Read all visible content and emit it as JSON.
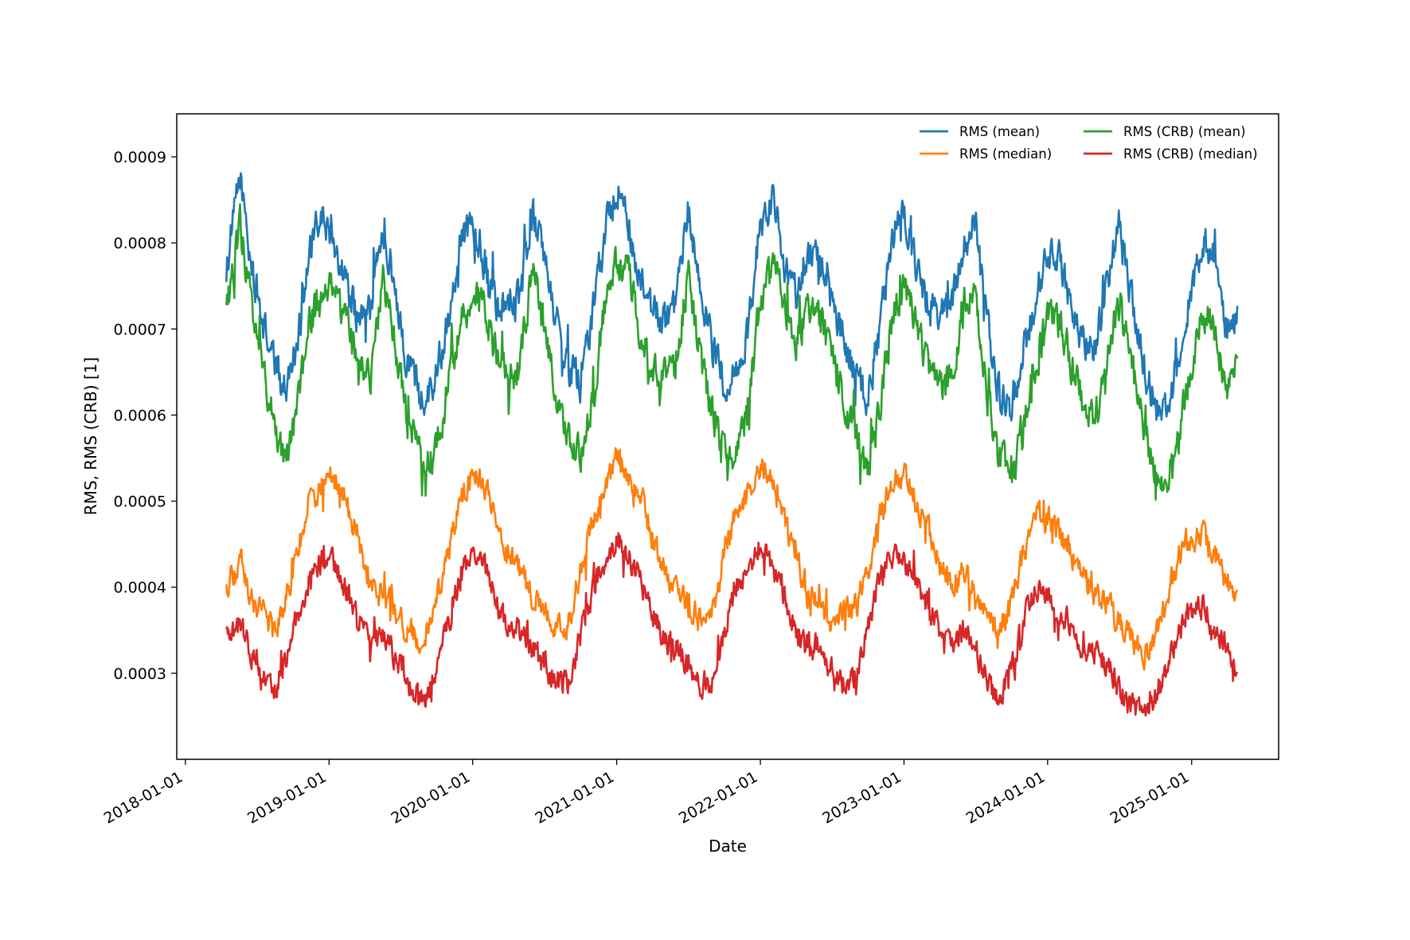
{
  "chart_data": {
    "type": "line",
    "title": "",
    "xlabel": "Date",
    "ylabel": "RMS, RMS (CRB) [1]",
    "x_range": [
      "2018-04-15",
      "2025-04-27"
    ],
    "xlim": [
      "2017-12-10",
      "2025-08-10"
    ],
    "ylim": [
      0.0002,
      0.00095
    ],
    "x_ticks": [
      "2018-01-01",
      "2019-01-01",
      "2020-01-01",
      "2021-01-01",
      "2022-01-01",
      "2023-01-01",
      "2024-01-01",
      "2025-01-01"
    ],
    "y_ticks": [
      0.0003,
      0.0004,
      0.0005,
      0.0006,
      0.0007,
      0.0008,
      0.0009
    ],
    "y_tick_labels": [
      "0.0003",
      "0.0004",
      "0.0005",
      "0.0006",
      "0.0007",
      "0.0008",
      "0.0009"
    ],
    "grid": false,
    "legend_position": "top-right",
    "series": [
      {
        "name": "RMS (mean)",
        "color": "#1f77b4",
        "x": [
          "2018-04-15",
          "2018-05-20",
          "2018-06-15",
          "2018-07-15",
          "2018-08-15",
          "2018-09-10",
          "2018-10-10",
          "2018-11-10",
          "2018-12-10",
          "2019-01-10",
          "2019-02-10",
          "2019-03-15",
          "2019-04-15",
          "2019-05-20",
          "2019-06-20",
          "2019-07-20",
          "2019-08-25",
          "2019-09-25",
          "2019-10-25",
          "2019-12-01",
          "2020-01-01",
          "2020-02-01",
          "2020-03-01",
          "2020-04-01",
          "2020-05-01",
          "2020-06-01",
          "2020-07-01",
          "2020-08-01",
          "2020-09-01",
          "2020-10-01",
          "2020-11-01",
          "2020-12-01",
          "2021-01-01",
          "2021-02-01",
          "2021-03-01",
          "2021-04-01",
          "2021-05-01",
          "2021-06-01",
          "2021-07-01",
          "2021-08-01",
          "2021-09-01",
          "2021-10-01",
          "2021-11-01",
          "2021-12-01",
          "2022-01-01",
          "2022-02-01",
          "2022-03-01",
          "2022-04-01",
          "2022-05-01",
          "2022-06-01",
          "2022-07-01",
          "2022-08-01",
          "2022-09-01",
          "2022-10-01",
          "2022-11-01",
          "2022-12-01",
          "2023-01-01",
          "2023-02-01",
          "2023-03-01",
          "2023-04-01",
          "2023-05-01",
          "2023-06-01",
          "2023-07-01",
          "2023-08-01",
          "2023-09-01",
          "2023-10-01",
          "2023-11-01",
          "2023-12-01",
          "2024-01-01",
          "2024-02-01",
          "2024-03-01",
          "2024-04-01",
          "2024-05-01",
          "2024-06-01",
          "2024-07-01",
          "2024-08-01",
          "2024-09-01",
          "2024-10-01",
          "2024-11-01",
          "2024-12-01",
          "2025-01-01",
          "2025-02-01",
          "2025-03-01",
          "2025-04-01",
          "2025-04-27"
        ],
        "values": [
          0.00077,
          0.00088,
          0.00078,
          0.00071,
          0.00066,
          0.00063,
          0.00068,
          0.00078,
          0.00083,
          0.00081,
          0.00076,
          0.00071,
          0.00072,
          0.00082,
          0.00074,
          0.00066,
          0.00062,
          0.00064,
          0.0007,
          0.0008,
          0.00083,
          0.00078,
          0.00073,
          0.00072,
          0.00074,
          0.00084,
          0.00078,
          0.00071,
          0.00065,
          0.00064,
          0.00072,
          0.00081,
          0.00087,
          0.00082,
          0.00075,
          0.00072,
          0.00071,
          0.00072,
          0.00084,
          0.00075,
          0.00068,
          0.00064,
          0.00064,
          0.0007,
          0.00082,
          0.00085,
          0.00078,
          0.00074,
          0.00079,
          0.00078,
          0.00073,
          0.00069,
          0.00064,
          0.00062,
          0.0007,
          0.0008,
          0.00084,
          0.00077,
          0.00073,
          0.00072,
          0.00072,
          0.0008,
          0.00082,
          0.0007,
          0.00062,
          0.00061,
          0.00067,
          0.00074,
          0.00079,
          0.00078,
          0.00072,
          0.00068,
          0.00068,
          0.00075,
          0.00082,
          0.00074,
          0.00066,
          0.00061,
          0.00061,
          0.00067,
          0.00075,
          0.0008,
          0.00078,
          0.0007,
          0.00072
        ]
      },
      {
        "name": "RMS (median)",
        "color": "#ff7f0e",
        "x": [
          "2018-04-15",
          "2018-05-20",
          "2018-06-15",
          "2018-07-15",
          "2018-08-15",
          "2018-09-10",
          "2018-10-10",
          "2018-11-10",
          "2018-12-10",
          "2019-01-10",
          "2019-02-10",
          "2019-03-15",
          "2019-04-15",
          "2019-05-20",
          "2019-06-20",
          "2019-07-20",
          "2019-08-25",
          "2019-09-25",
          "2019-10-25",
          "2019-12-01",
          "2020-01-01",
          "2020-02-01",
          "2020-03-01",
          "2020-04-01",
          "2020-05-01",
          "2020-06-01",
          "2020-07-01",
          "2020-08-01",
          "2020-09-01",
          "2020-10-01",
          "2020-11-01",
          "2020-12-01",
          "2021-01-01",
          "2021-02-01",
          "2021-03-01",
          "2021-04-01",
          "2021-05-01",
          "2021-06-01",
          "2021-07-01",
          "2021-08-01",
          "2021-09-01",
          "2021-10-01",
          "2021-11-01",
          "2021-12-01",
          "2022-01-01",
          "2022-02-01",
          "2022-03-01",
          "2022-04-01",
          "2022-05-01",
          "2022-06-01",
          "2022-07-01",
          "2022-08-01",
          "2022-09-01",
          "2022-10-01",
          "2022-11-01",
          "2022-12-01",
          "2023-01-01",
          "2023-02-01",
          "2023-03-01",
          "2023-04-01",
          "2023-05-01",
          "2023-06-01",
          "2023-07-01",
          "2023-08-01",
          "2023-09-01",
          "2023-10-01",
          "2023-11-01",
          "2023-12-01",
          "2024-01-01",
          "2024-02-01",
          "2024-03-01",
          "2024-04-01",
          "2024-05-01",
          "2024-06-01",
          "2024-07-01",
          "2024-08-01",
          "2024-09-01",
          "2024-10-01",
          "2024-11-01",
          "2024-12-01",
          "2025-01-01",
          "2025-02-01",
          "2025-03-01",
          "2025-04-01",
          "2025-04-27"
        ],
        "values": [
          0.0004,
          0.00043,
          0.00039,
          0.00037,
          0.00035,
          0.00038,
          0.00044,
          0.00049,
          0.00052,
          0.00053,
          0.0005,
          0.00046,
          0.0004,
          0.00039,
          0.00037,
          0.00035,
          0.00034,
          0.00037,
          0.00043,
          0.0005,
          0.00053,
          0.00052,
          0.00048,
          0.00044,
          0.00042,
          0.00039,
          0.00037,
          0.00035,
          0.00036,
          0.00042,
          0.00048,
          0.00051,
          0.00055,
          0.00053,
          0.00051,
          0.00046,
          0.00042,
          0.0004,
          0.00038,
          0.00036,
          0.00037,
          0.00044,
          0.00049,
          0.00051,
          0.00054,
          0.00052,
          0.00048,
          0.00043,
          0.00039,
          0.00038,
          0.00036,
          0.00037,
          0.00038,
          0.00041,
          0.00048,
          0.00052,
          0.00053,
          0.0005,
          0.00047,
          0.00043,
          0.0004,
          0.00042,
          0.00039,
          0.00036,
          0.00035,
          0.00038,
          0.00044,
          0.00049,
          0.00048,
          0.00046,
          0.00044,
          0.00041,
          0.00039,
          0.00038,
          0.00036,
          0.00034,
          0.00032,
          0.00034,
          0.00039,
          0.00044,
          0.00046,
          0.00046,
          0.00044,
          0.00041,
          0.00038
        ]
      },
      {
        "name": "RMS (CRB) (mean)",
        "color": "#2ca02c",
        "x": [
          "2018-04-15",
          "2018-05-20",
          "2018-06-15",
          "2018-07-15",
          "2018-08-15",
          "2018-09-10",
          "2018-10-10",
          "2018-11-10",
          "2018-12-10",
          "2019-01-10",
          "2019-02-10",
          "2019-03-15",
          "2019-04-15",
          "2019-05-20",
          "2019-06-20",
          "2019-07-20",
          "2019-08-25",
          "2019-09-25",
          "2019-10-25",
          "2019-12-01",
          "2020-01-01",
          "2020-02-01",
          "2020-03-01",
          "2020-04-01",
          "2020-05-01",
          "2020-06-01",
          "2020-07-01",
          "2020-08-01",
          "2020-09-01",
          "2020-10-01",
          "2020-11-01",
          "2020-12-01",
          "2021-01-01",
          "2021-02-01",
          "2021-03-01",
          "2021-04-01",
          "2021-05-01",
          "2021-06-01",
          "2021-07-01",
          "2021-08-01",
          "2021-09-01",
          "2021-10-01",
          "2021-11-01",
          "2021-12-01",
          "2022-01-01",
          "2022-02-01",
          "2022-03-01",
          "2022-04-01",
          "2022-05-01",
          "2022-06-01",
          "2022-07-01",
          "2022-08-01",
          "2022-09-01",
          "2022-10-01",
          "2022-11-01",
          "2022-12-01",
          "2023-01-01",
          "2023-02-01",
          "2023-03-01",
          "2023-04-01",
          "2023-05-01",
          "2023-06-01",
          "2023-07-01",
          "2023-08-01",
          "2023-09-01",
          "2023-10-01",
          "2023-11-01",
          "2023-12-01",
          "2024-01-01",
          "2024-02-01",
          "2024-03-01",
          "2024-04-01",
          "2024-05-01",
          "2024-06-01",
          "2024-07-01",
          "2024-08-01",
          "2024-09-01",
          "2024-10-01",
          "2024-11-01",
          "2024-12-01",
          "2025-01-01",
          "2025-02-01",
          "2025-03-01",
          "2025-04-01",
          "2025-04-27"
        ],
        "values": [
          0.00072,
          0.00082,
          0.00073,
          0.00065,
          0.00059,
          0.00055,
          0.0006,
          0.0007,
          0.00074,
          0.00075,
          0.00071,
          0.00066,
          0.00064,
          0.00076,
          0.00068,
          0.00059,
          0.00054,
          0.00055,
          0.00062,
          0.00071,
          0.00075,
          0.00072,
          0.00067,
          0.00064,
          0.00066,
          0.00077,
          0.0007,
          0.00062,
          0.00057,
          0.00055,
          0.00062,
          0.00072,
          0.00078,
          0.00076,
          0.0007,
          0.00065,
          0.00064,
          0.00065,
          0.00077,
          0.00067,
          0.0006,
          0.00056,
          0.00055,
          0.00061,
          0.00073,
          0.00078,
          0.00073,
          0.00068,
          0.00072,
          0.00071,
          0.00067,
          0.00062,
          0.00057,
          0.00054,
          0.00061,
          0.00071,
          0.00076,
          0.00071,
          0.00066,
          0.00063,
          0.00064,
          0.00073,
          0.00074,
          0.00062,
          0.00055,
          0.00053,
          0.00058,
          0.00066,
          0.00071,
          0.00071,
          0.00066,
          0.00061,
          0.0006,
          0.00066,
          0.00074,
          0.00066,
          0.00058,
          0.00053,
          0.00053,
          0.00058,
          0.00066,
          0.00072,
          0.0007,
          0.00062,
          0.00066
        ]
      },
      {
        "name": "RMS (CRB) (median)",
        "color": "#d62728",
        "x": [
          "2018-04-15",
          "2018-05-20",
          "2018-06-15",
          "2018-07-15",
          "2018-08-15",
          "2018-09-10",
          "2018-10-10",
          "2018-11-10",
          "2018-12-10",
          "2019-01-10",
          "2019-02-10",
          "2019-03-15",
          "2019-04-15",
          "2019-05-20",
          "2019-06-20",
          "2019-07-20",
          "2019-08-25",
          "2019-09-25",
          "2019-10-25",
          "2019-12-01",
          "2020-01-01",
          "2020-02-01",
          "2020-03-01",
          "2020-04-01",
          "2020-05-01",
          "2020-06-01",
          "2020-07-01",
          "2020-08-01",
          "2020-09-01",
          "2020-10-01",
          "2020-11-01",
          "2020-12-01",
          "2021-01-01",
          "2021-02-01",
          "2021-03-01",
          "2021-04-01",
          "2021-05-01",
          "2021-06-01",
          "2021-07-01",
          "2021-08-01",
          "2021-09-01",
          "2021-10-01",
          "2021-11-01",
          "2021-12-01",
          "2022-01-01",
          "2022-02-01",
          "2022-03-01",
          "2022-04-01",
          "2022-05-01",
          "2022-06-01",
          "2022-07-01",
          "2022-08-01",
          "2022-09-01",
          "2022-10-01",
          "2022-11-01",
          "2022-12-01",
          "2023-01-01",
          "2023-02-01",
          "2023-03-01",
          "2023-04-01",
          "2023-05-01",
          "2023-06-01",
          "2023-07-01",
          "2023-08-01",
          "2023-09-01",
          "2023-10-01",
          "2023-11-01",
          "2023-12-01",
          "2024-01-01",
          "2024-02-01",
          "2024-03-01",
          "2024-04-01",
          "2024-05-01",
          "2024-06-01",
          "2024-07-01",
          "2024-08-01",
          "2024-09-01",
          "2024-10-01",
          "2024-11-01",
          "2024-12-01",
          "2025-01-01",
          "2025-02-01",
          "2025-03-01",
          "2025-04-01",
          "2025-04-27"
        ],
        "values": [
          0.00034,
          0.00036,
          0.00032,
          0.0003,
          0.00028,
          0.00031,
          0.00036,
          0.00041,
          0.00043,
          0.00043,
          0.0004,
          0.00036,
          0.00034,
          0.00034,
          0.00032,
          0.00029,
          0.00027,
          0.00029,
          0.00035,
          0.00041,
          0.00044,
          0.00042,
          0.00038,
          0.00035,
          0.00035,
          0.00033,
          0.00031,
          0.00029,
          0.00029,
          0.00034,
          0.0004,
          0.00043,
          0.00046,
          0.00043,
          0.00041,
          0.00037,
          0.00034,
          0.00033,
          0.00031,
          0.00029,
          0.00029,
          0.00035,
          0.0004,
          0.00042,
          0.00045,
          0.00042,
          0.00039,
          0.00035,
          0.00033,
          0.00033,
          0.00031,
          0.00029,
          0.0003,
          0.00035,
          0.00041,
          0.00044,
          0.00043,
          0.0004,
          0.00038,
          0.00035,
          0.00033,
          0.00035,
          0.00033,
          0.00029,
          0.00027,
          0.0003,
          0.00036,
          0.0004,
          0.00039,
          0.00037,
          0.00036,
          0.00033,
          0.00032,
          0.00031,
          0.00028,
          0.00026,
          0.00025,
          0.00027,
          0.00031,
          0.00035,
          0.00037,
          0.00038,
          0.00035,
          0.00033,
          0.00031
        ]
      }
    ]
  }
}
